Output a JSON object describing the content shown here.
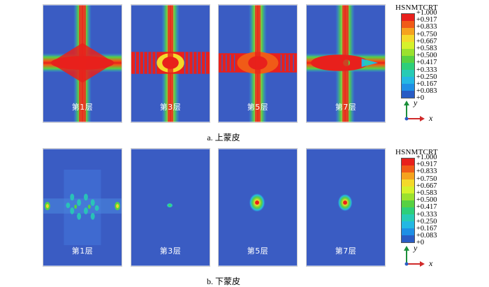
{
  "legend": {
    "title": "HSNMTCRT",
    "ticks": [
      "+1.000",
      "+0.917",
      "+0.833",
      "+0.750",
      "+0.667",
      "+0.583",
      "+0.500",
      "+0.417",
      "+0.333",
      "+0.250",
      "+0.167",
      "+0.083",
      "+0"
    ],
    "colors": [
      "#e8201c",
      "#f05b17",
      "#f5a21e",
      "#f4d92a",
      "#d6f12b",
      "#9be12e",
      "#57d142",
      "#2dcf7a",
      "#27cbb5",
      "#24b8e3",
      "#1f8fe5",
      "#2a5cc4"
    ]
  },
  "axis": {
    "y": "y",
    "x": "x"
  },
  "colors": {
    "background_blue": "#3a5cc3",
    "axis_y": "#1b8f3a",
    "axis_x": "#d02a2a"
  },
  "upper": {
    "caption": "a.  上蒙皮",
    "panels": [
      {
        "label": "第1层"
      },
      {
        "label": "第3层"
      },
      {
        "label": "第5层"
      },
      {
        "label": "第7层"
      }
    ]
  },
  "lower": {
    "caption": "b.  下蒙皮",
    "panels": [
      {
        "label": "第1层"
      },
      {
        "label": "第3层"
      },
      {
        "label": "第5层"
      },
      {
        "label": "第7层"
      }
    ]
  }
}
